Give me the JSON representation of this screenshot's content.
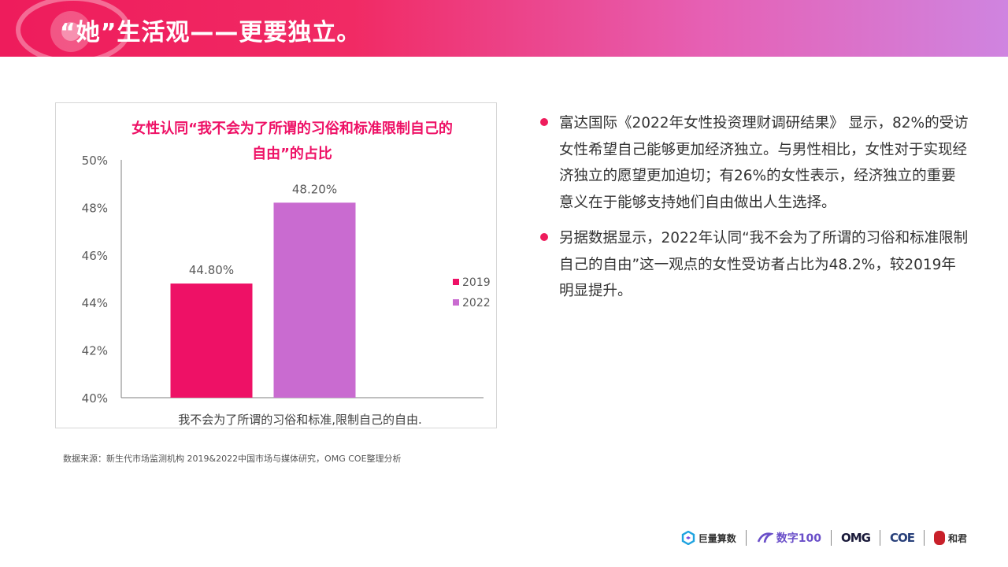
{
  "header": {
    "title": "“她”生活观——更要独立。"
  },
  "chart_data": {
    "type": "bar",
    "title_lines": [
      "女性认同“我不会为了所谓的习俗和标准限制自己的",
      "自由”的占比"
    ],
    "categories": [
      "我不会为了所谓的习俗和标准,限制自己的自由."
    ],
    "series": [
      {
        "name": "2019",
        "values": [
          44.8
        ],
        "label": "44.80%",
        "color": "#ee1166"
      },
      {
        "name": "2022",
        "values": [
          48.2
        ],
        "label": "48.20%",
        "color": "#c96bd0"
      }
    ],
    "ylim": [
      40,
      50
    ],
    "yticks": [
      "40%",
      "42%",
      "44%",
      "46%",
      "48%",
      "50%"
    ],
    "ytick_values": [
      40,
      42,
      44,
      46,
      48,
      50
    ],
    "legend_position": "right",
    "grid": false,
    "title_color": "#ee1166"
  },
  "source_note": "数据来源：新生代市场监测机构 2019&2022中国市场与媒体研究，OMG COE整理分析",
  "bullets": [
    {
      "text": "富达国际《2022年女性投资理财调研结果》 显示，82%的受访女性希望自己能够更加经济独立。与男性相比，女性对于实现经济独立的愿望更加迫切；有26%的女性表示，经济独立的重要意义在于能够支持她们自由做出人生选择。"
    },
    {
      "text": "另据数据显示，2022年认同“我不会为了所谓的习俗和标准限制自己的自由”这一观点的女性受访者占比为48.2%，较2019年明显提升。"
    }
  ],
  "logos": {
    "juliang": "巨量算数",
    "shuzi": "数字100",
    "omg": "OMG",
    "coe": "COE",
    "hejun": "和君"
  },
  "colors": {
    "accent": "#ee1c5c",
    "purple": "#c96bd0"
  }
}
